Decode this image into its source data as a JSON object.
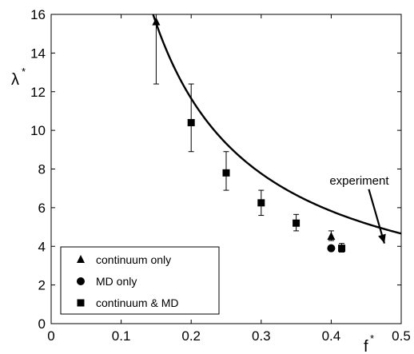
{
  "chart_data": {
    "type": "scatter",
    "xlabel": "f",
    "xlabel_sup": "*",
    "ylabel": "λ",
    "ylabel_sup": "*",
    "xlim": [
      0,
      0.5
    ],
    "ylim": [
      0,
      16
    ],
    "x_ticks": [
      0,
      0.1,
      0.2,
      0.3,
      0.4,
      0.5
    ],
    "x_tick_labels": [
      "0",
      "0.1",
      "0.2",
      "0.3",
      "0.4",
      "0.5"
    ],
    "y_ticks": [
      0,
      2,
      4,
      6,
      8,
      10,
      12,
      14,
      16
    ],
    "y_tick_labels": [
      "0",
      "2",
      "4",
      "6",
      "8",
      "10",
      "12",
      "14",
      "16"
    ],
    "grid": false,
    "legend_position": "bottom-left",
    "curve": {
      "name": "experiment",
      "formula": "lambda = 2.33 / f",
      "x_start": 0.145,
      "x_end": 0.5
    },
    "series": [
      {
        "name": "continuum only",
        "marker": "triangle",
        "points": [
          {
            "x": 0.15,
            "y": 15.6,
            "err_low": 12.4,
            "err_high": 16.0
          },
          {
            "x": 0.4,
            "y": 4.5,
            "err_low": 4.3,
            "err_high": 4.8
          }
        ]
      },
      {
        "name": "MD only",
        "marker": "circle",
        "points": [
          {
            "x": 0.4,
            "y": 3.9
          }
        ]
      },
      {
        "name": "continuum & MD",
        "marker": "square",
        "points": [
          {
            "x": 0.2,
            "y": 10.4,
            "err_low": 8.9,
            "err_high": 12.4
          },
          {
            "x": 0.25,
            "y": 7.8,
            "err_low": 6.9,
            "err_high": 8.9
          },
          {
            "x": 0.3,
            "y": 6.25,
            "err_low": 5.6,
            "err_high": 6.9
          },
          {
            "x": 0.35,
            "y": 5.2,
            "err_low": 4.8,
            "err_high": 5.65
          },
          {
            "x": 0.415,
            "y": 3.9,
            "err_low": 3.7,
            "err_high": 4.15
          }
        ]
      }
    ],
    "annotations": [
      {
        "text": "experiment",
        "x": 0.44,
        "y": 7.2,
        "arrow_to": {
          "x": 0.476,
          "y": 4.15
        }
      }
    ]
  }
}
